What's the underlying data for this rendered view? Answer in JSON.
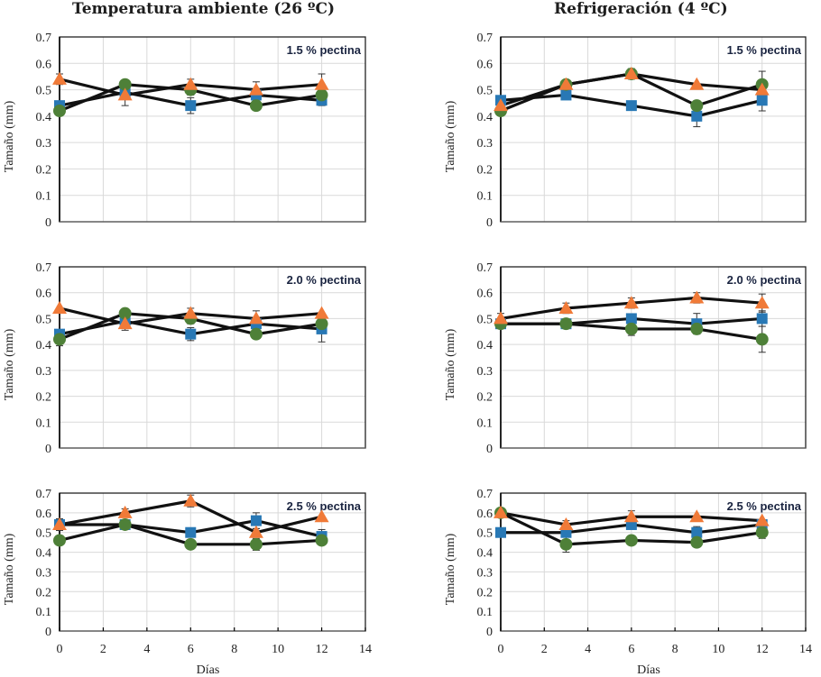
{
  "titles": {
    "left": "Temperatura ambiente  (26 ºC)",
    "right": "Refrigeración  (4 ºC)"
  },
  "series_colors": {
    "square": "#2878b5",
    "circle": "#4e8038",
    "triangle": "#f07a38",
    "line": "#111111"
  },
  "chart_data": [
    {
      "type": "line",
      "id": "ambient-1.5",
      "column": "left",
      "row": 0,
      "annotation": "1.5 % pectina",
      "xlabel": "",
      "ylabel": "Tamaño (mm)",
      "xlim": [
        0,
        14
      ],
      "ylim": [
        0,
        0.7
      ],
      "xticks": [
        0,
        2,
        4,
        6,
        8,
        10,
        12,
        14
      ],
      "yticks": [
        0,
        0.1,
        0.2,
        0.3,
        0.4,
        0.5,
        0.6,
        0.7
      ],
      "ytick_labels": [
        "0",
        "0.1",
        "0.2",
        "0.3",
        "0.4",
        "0.5",
        "0.6",
        "0.7"
      ],
      "show_xtick_labels": false,
      "grid": true,
      "x": [
        0,
        3,
        6,
        9,
        12
      ],
      "series": [
        {
          "name": "square",
          "marker": "square",
          "values": [
            0.44,
            0.49,
            0.44,
            0.48,
            0.46
          ],
          "errors": [
            0,
            0,
            0.03,
            0,
            0.02
          ]
        },
        {
          "name": "circle",
          "marker": "circle",
          "values": [
            0.42,
            0.52,
            0.5,
            0.44,
            0.48
          ],
          "errors": [
            0,
            0,
            0.02,
            0,
            0
          ]
        },
        {
          "name": "triangle",
          "marker": "triangle",
          "values": [
            0.54,
            0.48,
            0.52,
            0.5,
            0.52
          ],
          "errors": [
            0.02,
            0.04,
            0.02,
            0.03,
            0.04
          ]
        }
      ]
    },
    {
      "type": "line",
      "id": "refrig-1.5",
      "column": "right",
      "row": 0,
      "annotation": "1.5 % pectina",
      "xlabel": "",
      "ylabel": "Tamaño (mm)",
      "xlim": [
        0,
        14
      ],
      "ylim": [
        0,
        0.7
      ],
      "xticks": [
        0,
        2,
        4,
        6,
        8,
        10,
        12,
        14
      ],
      "yticks": [
        0,
        0.1,
        0.2,
        0.3,
        0.4,
        0.5,
        0.6,
        0.7
      ],
      "ytick_labels": [
        "0",
        "0.1",
        "0.2",
        "0.3",
        "0.4",
        "0.5",
        "0.6",
        "0.7"
      ],
      "show_xtick_labels": false,
      "grid": true,
      "x": [
        0,
        3,
        6,
        9,
        12
      ],
      "series": [
        {
          "name": "square",
          "marker": "square",
          "values": [
            0.46,
            0.48,
            0.44,
            0.4,
            0.46
          ],
          "errors": [
            0,
            0.01,
            0,
            0.04,
            0.04
          ]
        },
        {
          "name": "circle",
          "marker": "circle",
          "values": [
            0.42,
            0.52,
            0.56,
            0.44,
            0.52
          ],
          "errors": [
            0,
            0,
            0.01,
            0,
            0.05
          ]
        },
        {
          "name": "triangle",
          "marker": "triangle",
          "values": [
            0.44,
            0.52,
            0.56,
            0.52,
            0.5
          ],
          "errors": [
            0,
            0,
            0.02,
            0,
            0
          ]
        }
      ]
    },
    {
      "type": "line",
      "id": "ambient-2.0",
      "column": "left",
      "row": 1,
      "annotation": "2.0 % pectina",
      "xlabel": "",
      "ylabel": "Tamaño (mm)",
      "xlim": [
        0,
        14
      ],
      "ylim": [
        0,
        0.7
      ],
      "xticks": [
        0,
        2,
        4,
        6,
        8,
        10,
        12,
        14
      ],
      "yticks": [
        0,
        0.1,
        0.2,
        0.3,
        0.4,
        0.5,
        0.6,
        0.7
      ],
      "ytick_labels": [
        "0",
        "0.1",
        "0.2",
        "0.3",
        "0.4",
        "0.5",
        "0.6",
        "0.7"
      ],
      "show_xtick_labels": false,
      "grid": true,
      "x": [
        0,
        3,
        6,
        9,
        12
      ],
      "series": [
        {
          "name": "square",
          "marker": "square",
          "values": [
            0.44,
            0.49,
            0.44,
            0.48,
            0.46
          ],
          "errors": [
            0,
            0,
            0.025,
            0,
            0.05
          ]
        },
        {
          "name": "circle",
          "marker": "circle",
          "values": [
            0.42,
            0.52,
            0.5,
            0.44,
            0.48
          ],
          "errors": [
            0.025,
            0,
            0.02,
            0,
            0
          ]
        },
        {
          "name": "triangle",
          "marker": "triangle",
          "values": [
            0.54,
            0.48,
            0.52,
            0.5,
            0.52
          ],
          "errors": [
            0,
            0.025,
            0.02,
            0.03,
            0
          ]
        }
      ]
    },
    {
      "type": "line",
      "id": "refrig-2.0",
      "column": "right",
      "row": 1,
      "annotation": "2.0 % pectina",
      "xlabel": "",
      "ylabel": "Tamaño (mm)",
      "xlim": [
        0,
        14
      ],
      "ylim": [
        0,
        0.7
      ],
      "xticks": [
        0,
        2,
        4,
        6,
        8,
        10,
        12,
        14
      ],
      "yticks": [
        0,
        0.1,
        0.2,
        0.3,
        0.4,
        0.5,
        0.6,
        0.7
      ],
      "ytick_labels": [
        "0",
        "0.1",
        "0.2",
        "0.3",
        "0.4",
        "0.5",
        "0.6",
        "0.7"
      ],
      "show_xtick_labels": false,
      "grid": true,
      "x": [
        0,
        3,
        6,
        9,
        12
      ],
      "series": [
        {
          "name": "square",
          "marker": "square",
          "values": [
            0.48,
            0.48,
            0.5,
            0.48,
            0.5
          ],
          "errors": [
            0,
            0,
            0,
            0.04,
            0.03
          ]
        },
        {
          "name": "circle",
          "marker": "circle",
          "values": [
            0.48,
            0.48,
            0.46,
            0.46,
            0.42
          ],
          "errors": [
            0,
            0,
            0.025,
            0,
            0.05
          ]
        },
        {
          "name": "triangle",
          "marker": "triangle",
          "values": [
            0.5,
            0.54,
            0.56,
            0.58,
            0.56
          ],
          "errors": [
            0.02,
            0.02,
            0.02,
            0.02,
            0.035
          ]
        }
      ]
    },
    {
      "type": "line",
      "id": "ambient-2.5",
      "column": "left",
      "row": 2,
      "annotation": "2.5 % pectina",
      "xlabel": "Días",
      "ylabel": "Tamaño (mm)",
      "xlim": [
        0,
        14
      ],
      "ylim": [
        0,
        0.7
      ],
      "xticks": [
        0,
        2,
        4,
        6,
        8,
        10,
        12,
        14
      ],
      "yticks": [
        0,
        0.1,
        0.2,
        0.3,
        0.4,
        0.5,
        0.6,
        0.7
      ],
      "ytick_labels": [
        "0",
        "0.1",
        "0.2",
        "0.3",
        "0.4",
        "0.5",
        "0.6",
        "0.7"
      ],
      "show_xtick_labels": true,
      "grid": true,
      "x": [
        0,
        3,
        6,
        9,
        12
      ],
      "series": [
        {
          "name": "square",
          "marker": "square",
          "values": [
            0.54,
            0.54,
            0.5,
            0.56,
            0.48
          ],
          "errors": [
            0.03,
            0,
            0,
            0.04,
            0.035
          ]
        },
        {
          "name": "circle",
          "marker": "circle",
          "values": [
            0.46,
            0.54,
            0.44,
            0.44,
            0.46
          ],
          "errors": [
            0,
            0,
            0,
            0.03,
            0
          ]
        },
        {
          "name": "triangle",
          "marker": "triangle",
          "values": [
            0.54,
            0.6,
            0.66,
            0.5,
            0.58
          ],
          "errors": [
            0,
            0.02,
            0.03,
            0.02,
            0
          ]
        }
      ]
    },
    {
      "type": "line",
      "id": "refrig-2.5",
      "column": "right",
      "row": 2,
      "annotation": "2.5 % pectina",
      "xlabel": "Días",
      "ylabel": "Tamaño (mm)",
      "xlim": [
        0,
        14
      ],
      "ylim": [
        0,
        0.7
      ],
      "xticks": [
        0,
        2,
        4,
        6,
        8,
        10,
        12,
        14
      ],
      "yticks": [
        0,
        0.1,
        0.2,
        0.3,
        0.4,
        0.5,
        0.6,
        0.7
      ],
      "ytick_labels": [
        "0",
        "0.1",
        "0.2",
        "0.3",
        "0.4",
        "0.5",
        "0.6",
        "0.7"
      ],
      "show_xtick_labels": true,
      "grid": true,
      "x": [
        0,
        3,
        6,
        9,
        12
      ],
      "series": [
        {
          "name": "square",
          "marker": "square",
          "values": [
            0.5,
            0.5,
            0.54,
            0.5,
            0.54
          ],
          "errors": [
            0,
            0,
            0,
            0.03,
            0
          ]
        },
        {
          "name": "circle",
          "marker": "circle",
          "values": [
            0.6,
            0.44,
            0.46,
            0.45,
            0.5
          ],
          "errors": [
            0,
            0.04,
            0,
            0,
            0.03
          ]
        },
        {
          "name": "triangle",
          "marker": "triangle",
          "values": [
            0.6,
            0.54,
            0.58,
            0.58,
            0.56
          ],
          "errors": [
            0,
            0.02,
            0.03,
            0,
            0
          ]
        }
      ]
    }
  ]
}
